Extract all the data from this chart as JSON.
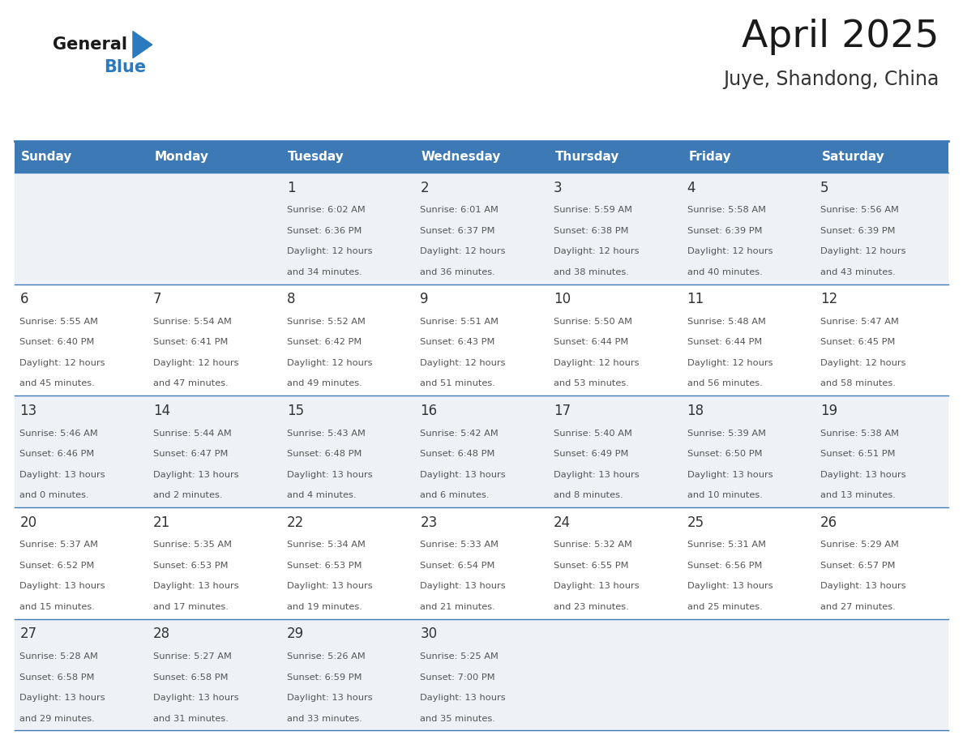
{
  "title": "April 2025",
  "subtitle": "Juye, Shandong, China",
  "days_of_week": [
    "Sunday",
    "Monday",
    "Tuesday",
    "Wednesday",
    "Thursday",
    "Friday",
    "Saturday"
  ],
  "header_bg_color": "#3d7ab5",
  "header_text_color": "#ffffff",
  "cell_bg_color_light": "#eef2f7",
  "cell_bg_color_white": "#ffffff",
  "grid_line_color": "#3d7ab5",
  "day_number_color": "#333333",
  "cell_text_color": "#555555",
  "title_color": "#1a1a1a",
  "subtitle_color": "#333333",
  "logo_general_color": "#1a1a1a",
  "logo_blue_color": "#2b7abf",
  "weeks": [
    [
      {
        "day": null,
        "sunrise": null,
        "sunset": null,
        "daylight": null
      },
      {
        "day": null,
        "sunrise": null,
        "sunset": null,
        "daylight": null
      },
      {
        "day": 1,
        "sunrise": "6:02 AM",
        "sunset": "6:36 PM",
        "daylight": "12 hours and 34 minutes"
      },
      {
        "day": 2,
        "sunrise": "6:01 AM",
        "sunset": "6:37 PM",
        "daylight": "12 hours and 36 minutes"
      },
      {
        "day": 3,
        "sunrise": "5:59 AM",
        "sunset": "6:38 PM",
        "daylight": "12 hours and 38 minutes"
      },
      {
        "day": 4,
        "sunrise": "5:58 AM",
        "sunset": "6:39 PM",
        "daylight": "12 hours and 40 minutes"
      },
      {
        "day": 5,
        "sunrise": "5:56 AM",
        "sunset": "6:39 PM",
        "daylight": "12 hours and 43 minutes"
      }
    ],
    [
      {
        "day": 6,
        "sunrise": "5:55 AM",
        "sunset": "6:40 PM",
        "daylight": "12 hours and 45 minutes"
      },
      {
        "day": 7,
        "sunrise": "5:54 AM",
        "sunset": "6:41 PM",
        "daylight": "12 hours and 47 minutes"
      },
      {
        "day": 8,
        "sunrise": "5:52 AM",
        "sunset": "6:42 PM",
        "daylight": "12 hours and 49 minutes"
      },
      {
        "day": 9,
        "sunrise": "5:51 AM",
        "sunset": "6:43 PM",
        "daylight": "12 hours and 51 minutes"
      },
      {
        "day": 10,
        "sunrise": "5:50 AM",
        "sunset": "6:44 PM",
        "daylight": "12 hours and 53 minutes"
      },
      {
        "day": 11,
        "sunrise": "5:48 AM",
        "sunset": "6:44 PM",
        "daylight": "12 hours and 56 minutes"
      },
      {
        "day": 12,
        "sunrise": "5:47 AM",
        "sunset": "6:45 PM",
        "daylight": "12 hours and 58 minutes"
      }
    ],
    [
      {
        "day": 13,
        "sunrise": "5:46 AM",
        "sunset": "6:46 PM",
        "daylight": "13 hours and 0 minutes"
      },
      {
        "day": 14,
        "sunrise": "5:44 AM",
        "sunset": "6:47 PM",
        "daylight": "13 hours and 2 minutes"
      },
      {
        "day": 15,
        "sunrise": "5:43 AM",
        "sunset": "6:48 PM",
        "daylight": "13 hours and 4 minutes"
      },
      {
        "day": 16,
        "sunrise": "5:42 AM",
        "sunset": "6:48 PM",
        "daylight": "13 hours and 6 minutes"
      },
      {
        "day": 17,
        "sunrise": "5:40 AM",
        "sunset": "6:49 PM",
        "daylight": "13 hours and 8 minutes"
      },
      {
        "day": 18,
        "sunrise": "5:39 AM",
        "sunset": "6:50 PM",
        "daylight": "13 hours and 10 minutes"
      },
      {
        "day": 19,
        "sunrise": "5:38 AM",
        "sunset": "6:51 PM",
        "daylight": "13 hours and 13 minutes"
      }
    ],
    [
      {
        "day": 20,
        "sunrise": "5:37 AM",
        "sunset": "6:52 PM",
        "daylight": "13 hours and 15 minutes"
      },
      {
        "day": 21,
        "sunrise": "5:35 AM",
        "sunset": "6:53 PM",
        "daylight": "13 hours and 17 minutes"
      },
      {
        "day": 22,
        "sunrise": "5:34 AM",
        "sunset": "6:53 PM",
        "daylight": "13 hours and 19 minutes"
      },
      {
        "day": 23,
        "sunrise": "5:33 AM",
        "sunset": "6:54 PM",
        "daylight": "13 hours and 21 minutes"
      },
      {
        "day": 24,
        "sunrise": "5:32 AM",
        "sunset": "6:55 PM",
        "daylight": "13 hours and 23 minutes"
      },
      {
        "day": 25,
        "sunrise": "5:31 AM",
        "sunset": "6:56 PM",
        "daylight": "13 hours and 25 minutes"
      },
      {
        "day": 26,
        "sunrise": "5:29 AM",
        "sunset": "6:57 PM",
        "daylight": "13 hours and 27 minutes"
      }
    ],
    [
      {
        "day": 27,
        "sunrise": "5:28 AM",
        "sunset": "6:58 PM",
        "daylight": "13 hours and 29 minutes"
      },
      {
        "day": 28,
        "sunrise": "5:27 AM",
        "sunset": "6:58 PM",
        "daylight": "13 hours and 31 minutes"
      },
      {
        "day": 29,
        "sunrise": "5:26 AM",
        "sunset": "6:59 PM",
        "daylight": "13 hours and 33 minutes"
      },
      {
        "day": 30,
        "sunrise": "5:25 AM",
        "sunset": "7:00 PM",
        "daylight": "13 hours and 35 minutes"
      },
      {
        "day": null,
        "sunrise": null,
        "sunset": null,
        "daylight": null
      },
      {
        "day": null,
        "sunrise": null,
        "sunset": null,
        "daylight": null
      },
      {
        "day": null,
        "sunrise": null,
        "sunset": null,
        "daylight": null
      }
    ]
  ]
}
